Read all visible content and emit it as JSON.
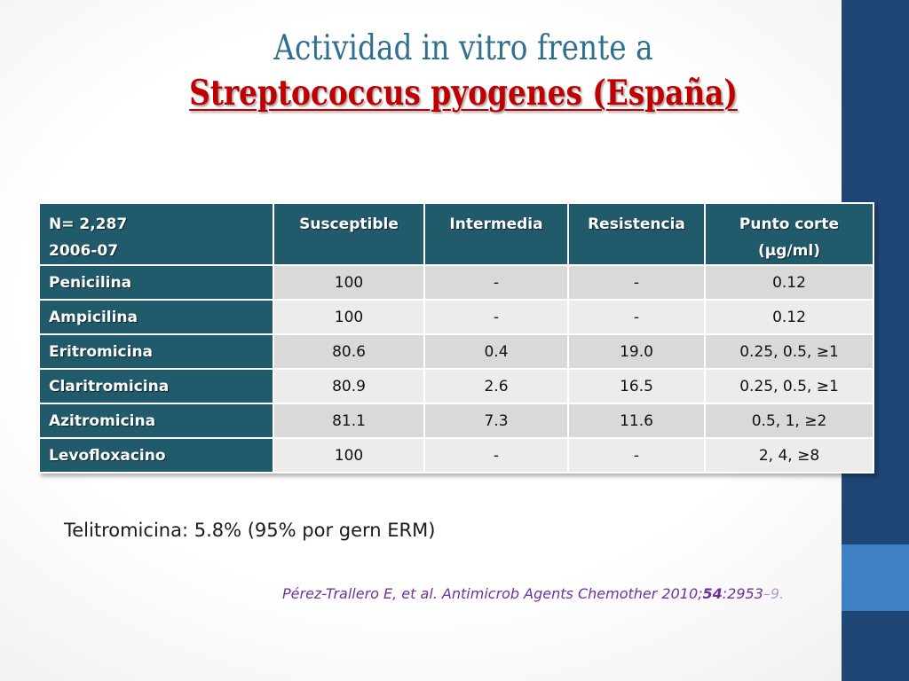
{
  "title": {
    "line1": "Actividad in vitro frente a",
    "line2": "Streptococcus pyogenes (España)"
  },
  "table": {
    "corner_line1": "N= 2,287",
    "corner_line2": "2006-07",
    "headers": {
      "susceptible": "Susceptible",
      "intermedia": "Intermedia",
      "resistencia": "Resistencia",
      "punto_corte_line1": "Punto corte",
      "punto_corte_line2": "(µg/ml)"
    },
    "rows": [
      {
        "drug": "Penicilina",
        "susceptible": "100",
        "intermedia": "-",
        "resistencia": "-",
        "punto_corte": "0.12"
      },
      {
        "drug": "Ampicilina",
        "susceptible": "100",
        "intermedia": "-",
        "resistencia": "-",
        "punto_corte": "0.12"
      },
      {
        "drug": "Eritromicina",
        "susceptible": "80.6",
        "intermedia": "0.4",
        "resistencia": "19.0",
        "punto_corte": "0.25, 0.5, ≥1"
      },
      {
        "drug": "Claritromicina",
        "susceptible": "80.9",
        "intermedia": "2.6",
        "resistencia": "16.5",
        "punto_corte": "0.25, 0.5, ≥1"
      },
      {
        "drug": "Azitromicina",
        "susceptible": "81.1",
        "intermedia": "7.3",
        "resistencia": "11.6",
        "punto_corte": "0.5, 1, ≥2"
      },
      {
        "drug": "Levofloxacino",
        "susceptible": "100",
        "intermedia": "-",
        "resistencia": "-",
        "punto_corte": "2, 4, ≥8"
      }
    ]
  },
  "note": "Telitromicina: 5.8% (95% por gern ERM)",
  "citation": {
    "prefix": "Pérez-Trallero E, et al. Antimicrob Agents Chemother 2010;",
    "volume": "54",
    "pages": ":2953",
    "tail": "–9."
  },
  "colors": {
    "title_line1": "#2f6f8f",
    "title_line2": "#c00000",
    "header_fill": "#215b6b",
    "row_fill_odd": "#d9d9d9",
    "row_fill_even": "#ececec",
    "side_bar": "#1f4675",
    "side_bar_accent": "#3f7fc4",
    "citation": "#7030a0"
  }
}
